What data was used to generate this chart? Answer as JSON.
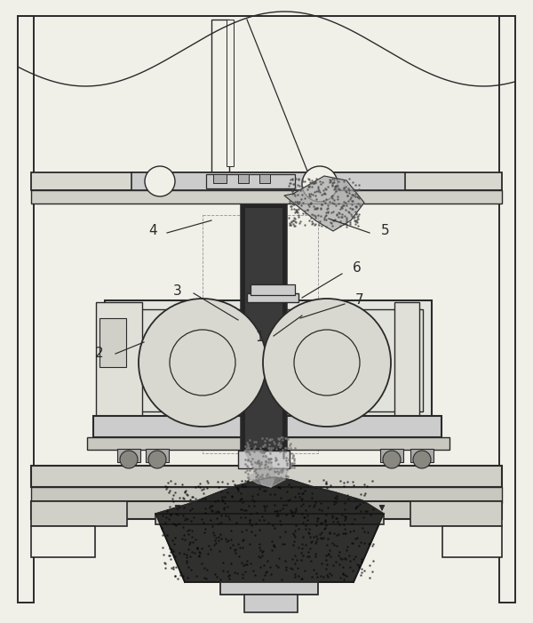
{
  "bg_color": "#f0efe8",
  "lc": "#2a2a2a",
  "dark": "#111111",
  "gray": "#999999",
  "lgray": "#cccccc",
  "mfill": "#e5e5e0",
  "figw": 6.0,
  "figh": 7.01,
  "dpi": 100
}
